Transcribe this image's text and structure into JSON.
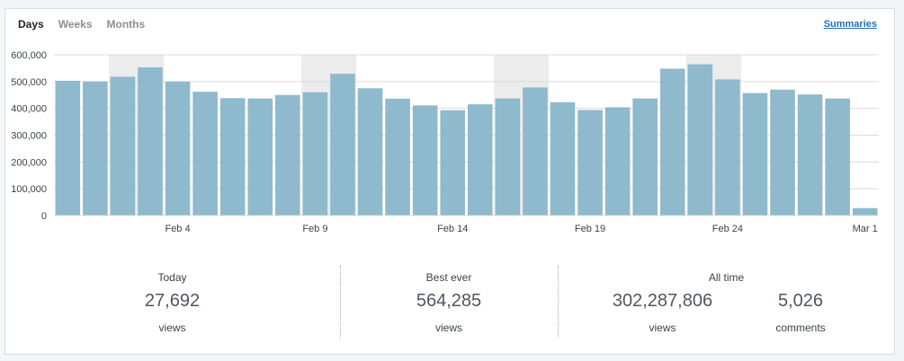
{
  "tabs": [
    {
      "label": "Days",
      "active": true
    },
    {
      "label": "Weeks",
      "active": false
    },
    {
      "label": "Months",
      "active": false
    }
  ],
  "summaries_link": "Summaries",
  "colors": {
    "bar": "#8fb9cc",
    "weekend_band": "#ececec",
    "grid": "#dcdcde",
    "text": "#3c434a",
    "link": "#2271b1"
  },
  "chart_data": {
    "type": "bar",
    "ylim": [
      0,
      600000
    ],
    "yticks": [
      "0",
      "100,000",
      "200,000",
      "300,000",
      "400,000",
      "500,000",
      "600,000"
    ],
    "ytick_values": [
      0,
      100000,
      200000,
      300000,
      400000,
      500000,
      600000
    ],
    "xtick_labels": [
      {
        "label": "Feb 4",
        "index": 4
      },
      {
        "label": "Feb 9",
        "index": 9
      },
      {
        "label": "Feb 14",
        "index": 14
      },
      {
        "label": "Feb 19",
        "index": 19
      },
      {
        "label": "Feb 24",
        "index": 24
      },
      {
        "label": "Mar 1",
        "index": 29
      }
    ],
    "values": [
      503000,
      500000,
      518000,
      553000,
      500000,
      462000,
      438000,
      437000,
      450000,
      460000,
      529000,
      475000,
      436000,
      411000,
      393000,
      415000,
      437000,
      478000,
      423000,
      394000,
      404000,
      437000,
      548000,
      564285,
      508000,
      457000,
      470000,
      452000,
      437000,
      27692
    ],
    "highlight_bands": [
      [
        2,
        3
      ],
      [
        9,
        10
      ],
      [
        16,
        17
      ],
      [
        23,
        24
      ]
    ]
  },
  "stats": {
    "today": {
      "label": "Today",
      "value": "27,692",
      "unit": "views"
    },
    "best": {
      "label": "Best ever",
      "value": "564,285",
      "unit": "views"
    },
    "alltime": {
      "label": "All time",
      "views_value": "302,287,806",
      "views_unit": "views",
      "comments_value": "5,026",
      "comments_unit": "comments"
    }
  }
}
